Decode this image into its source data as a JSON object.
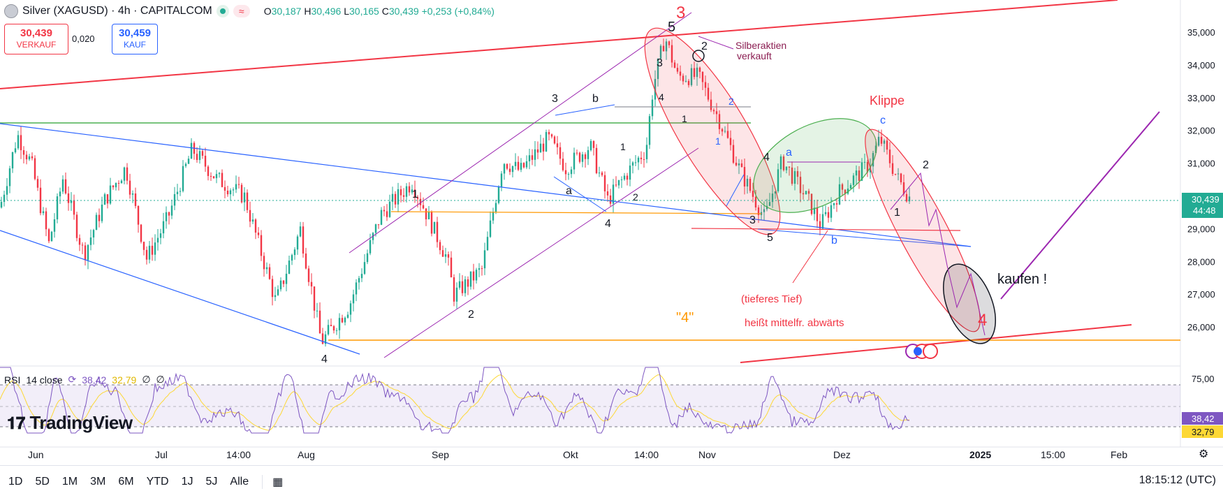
{
  "header": {
    "title": "Silver (XAGUSD) · 4h · CAPITALCOM",
    "wave_indicator": "≈",
    "open_label": "O",
    "open": "30,187",
    "high_label": "H",
    "high": "30,496",
    "low_label": "L",
    "low": "30,165",
    "close_label": "C",
    "close": "30,439",
    "change": "+0,253 (+0,84%)",
    "sell_price": "30,439",
    "sell_label": "VERKAUF",
    "spread": "0,020",
    "buy_price": "30,459",
    "buy_label": "KAUF"
  },
  "rsi": {
    "label": "RSI",
    "params": "14 close",
    "value": "38,42",
    "ma_value": "32,79",
    "na1": "∅",
    "na2": "∅"
  },
  "brand": "TradingView",
  "price_axis": [
    "35,000",
    "34,000",
    "33,000",
    "32,000",
    "31,000",
    "30,000",
    "29,000",
    "28,000",
    "27,000",
    "26,000"
  ],
  "price_tag": {
    "value": "30,439",
    "countdown": "44:48"
  },
  "rsi_axis": [
    "75,00",
    "38,42",
    "32,79"
  ],
  "time_axis": [
    "Jun",
    "Jul",
    "14:00",
    "Aug",
    "Sep",
    "Okt",
    "14:00",
    "Nov",
    "Dez",
    "2025",
    "15:00",
    "Feb"
  ],
  "toolbar": {
    "ranges": [
      "1D",
      "5D",
      "1M",
      "3M",
      "6M",
      "YTD",
      "1J",
      "5J",
      "Alle"
    ],
    "clock": "18:15:12 (UTC)"
  },
  "annotations": {
    "wave3_big": "3",
    "wave5_top": "5",
    "wave2_top": "2",
    "silberaktien1": "Silberaktien",
    "silberaktien2": "verkauft",
    "klippe": "Klippe",
    "c": "c",
    "a_blue": "a",
    "b_blue": "b",
    "w1_left": "1",
    "w2_sep": "2",
    "w3_okt": "3",
    "b_okt": "b",
    "a_okt": "a",
    "w1_okt": "1",
    "w2_okt": "2",
    "w4_okt": "4",
    "w4_aug": "4",
    "w3_nov": "3",
    "w4_nov": "4",
    "w5_nov": "5",
    "w3_top": "3",
    "w4_top": "4",
    "w1_top": "1",
    "w1_blue": "1",
    "w2_blue": "2",
    "w1_dec": "1",
    "w2_dec": "2",
    "w4_red": "4",
    "tieferes": "(tieferes Tief)",
    "heisst": "heißt mittelfr. abwärts",
    "quote4": "\"4\"",
    "kaufen": "kaufen !"
  },
  "colors": {
    "up": "#22ab94",
    "down": "#f23645",
    "red": "#f23645",
    "blue": "#2962ff",
    "purple": "#9c27b0",
    "orange": "#ff9800",
    "green": "#4caf50",
    "rsi": "#7e57c2",
    "rsi_ma": "#fdd835"
  },
  "icons": {
    "logo": "silver-coin-icon",
    "settings": "gear-icon",
    "calendar": "calendar-icon",
    "compare": "refresh-icon"
  }
}
